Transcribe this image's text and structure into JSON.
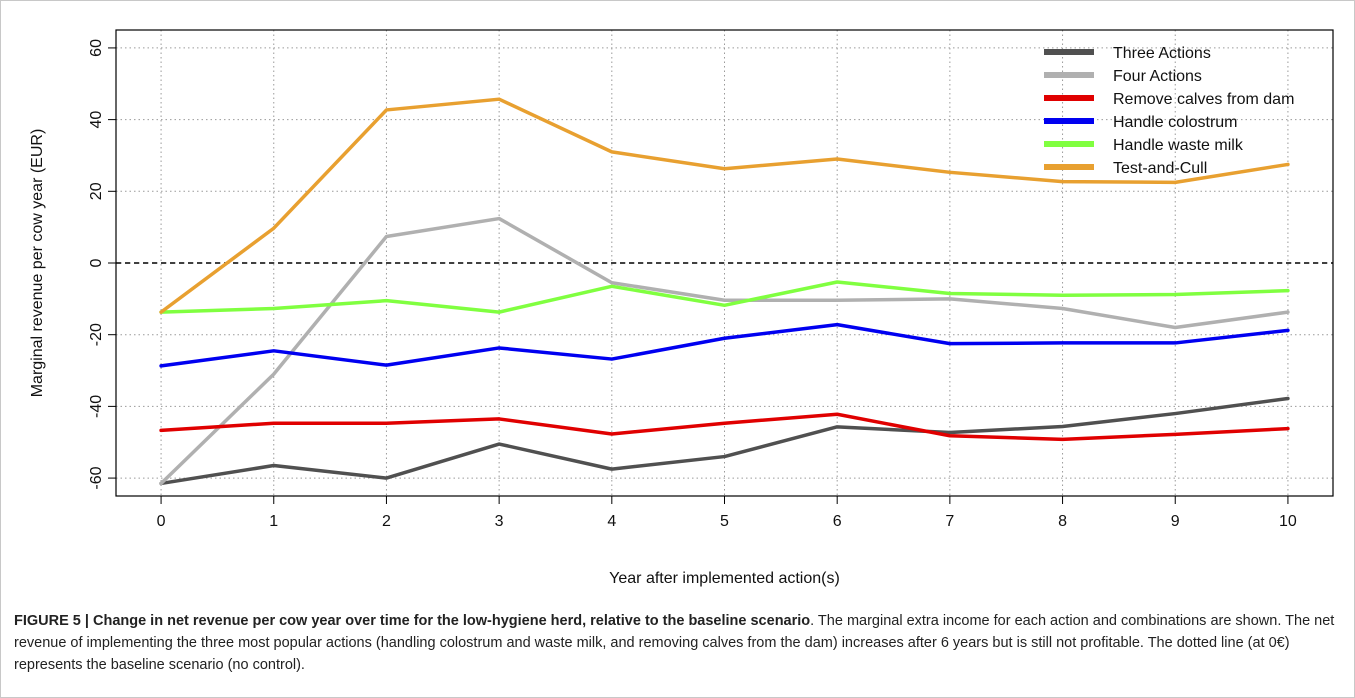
{
  "chart_data": {
    "type": "line",
    "title": "",
    "xlabel": "Year after implemented action(s)",
    "ylabel": "Marginal revenue per cow year (EUR)",
    "x": [
      0,
      1,
      2,
      3,
      4,
      5,
      6,
      7,
      8,
      9,
      10
    ],
    "xlim": [
      -0.4,
      10.4
    ],
    "ylim": [
      -65,
      65
    ],
    "yticks": [
      -60,
      -40,
      -20,
      0,
      20,
      40,
      60
    ],
    "grid": true,
    "baseline": 0,
    "legend_position": "top-right",
    "series": [
      {
        "name": "Three Actions",
        "color": "#505050",
        "values": [
          -61.5,
          -56.5,
          -60,
          -50.5,
          -57.5,
          -54,
          -45.7,
          -47.3,
          -45.6,
          -42,
          -37.8
        ]
      },
      {
        "name": "Four Actions",
        "color": "#b0b0b0",
        "values": [
          -61.5,
          -31,
          7.4,
          12.4,
          -5.5,
          -10.4,
          -10.4,
          -10,
          -12.7,
          -18,
          -13.7
        ]
      },
      {
        "name": "Remove calves from dam",
        "color": "#e00000",
        "values": [
          -46.7,
          -44.7,
          -44.7,
          -43.5,
          -47.7,
          -44.7,
          -42.2,
          -48.2,
          -49.2,
          -47.8,
          -46.2
        ]
      },
      {
        "name": "Handle colostrum",
        "color": "#0000f0",
        "values": [
          -28.7,
          -24.5,
          -28.5,
          -23.7,
          -26.8,
          -21,
          -17.2,
          -22.5,
          -22.3,
          -22.3,
          -18.8
        ]
      },
      {
        "name": "Handle waste milk",
        "color": "#80ff40",
        "values": [
          -13.7,
          -12.7,
          -10.5,
          -13.7,
          -6.5,
          -11.8,
          -5.3,
          -8.5,
          -9,
          -8.8,
          -7.7
        ]
      },
      {
        "name": "Test-and-Cull",
        "color": "#e8a030",
        "values": [
          -13.7,
          9.7,
          42.7,
          45.7,
          31,
          26.3,
          29,
          25.3,
          22.7,
          22.5,
          27.5
        ]
      }
    ]
  },
  "caption": {
    "title": "FIGURE 5 | Change in net revenue per cow year over time for the low-hygiene herd, relative to the baseline scenario",
    "body": ". The marginal extra income for each action and combinations are shown. The net revenue of implementing the three most popular actions (handling colostrum and waste milk, and removing calves from the dam) increases after 6 years but is still not profitable. The dotted line (at 0€) represents the baseline scenario (no control)."
  }
}
